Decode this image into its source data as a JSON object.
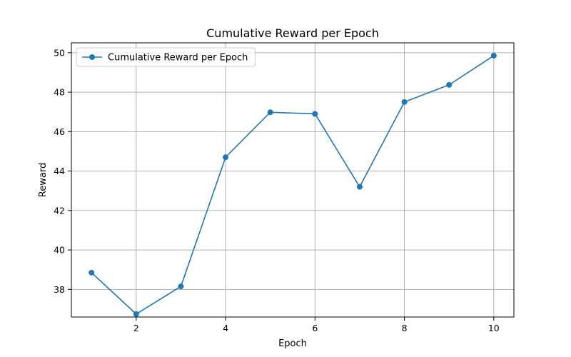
{
  "chart_data": {
    "type": "line",
    "title": "Cumulative Reward per Epoch",
    "xlabel": "Epoch",
    "ylabel": "Reward",
    "xlim": [
      0.55,
      10.45
    ],
    "ylim": [
      36.6,
      50.5
    ],
    "xticks": [
      2,
      4,
      6,
      8,
      10
    ],
    "yticks": [
      38,
      40,
      42,
      44,
      46,
      48,
      50
    ],
    "grid": true,
    "legend_position": "top-left",
    "series": [
      {
        "name": "Cumulative Reward per Epoch",
        "color": "#1f77b4",
        "marker": "circle",
        "x": [
          1,
          2,
          3,
          4,
          5,
          6,
          7,
          8,
          9,
          10
        ],
        "y": [
          38.85,
          36.75,
          38.15,
          44.7,
          46.98,
          46.9,
          43.2,
          47.5,
          48.37,
          49.85
        ]
      }
    ]
  }
}
